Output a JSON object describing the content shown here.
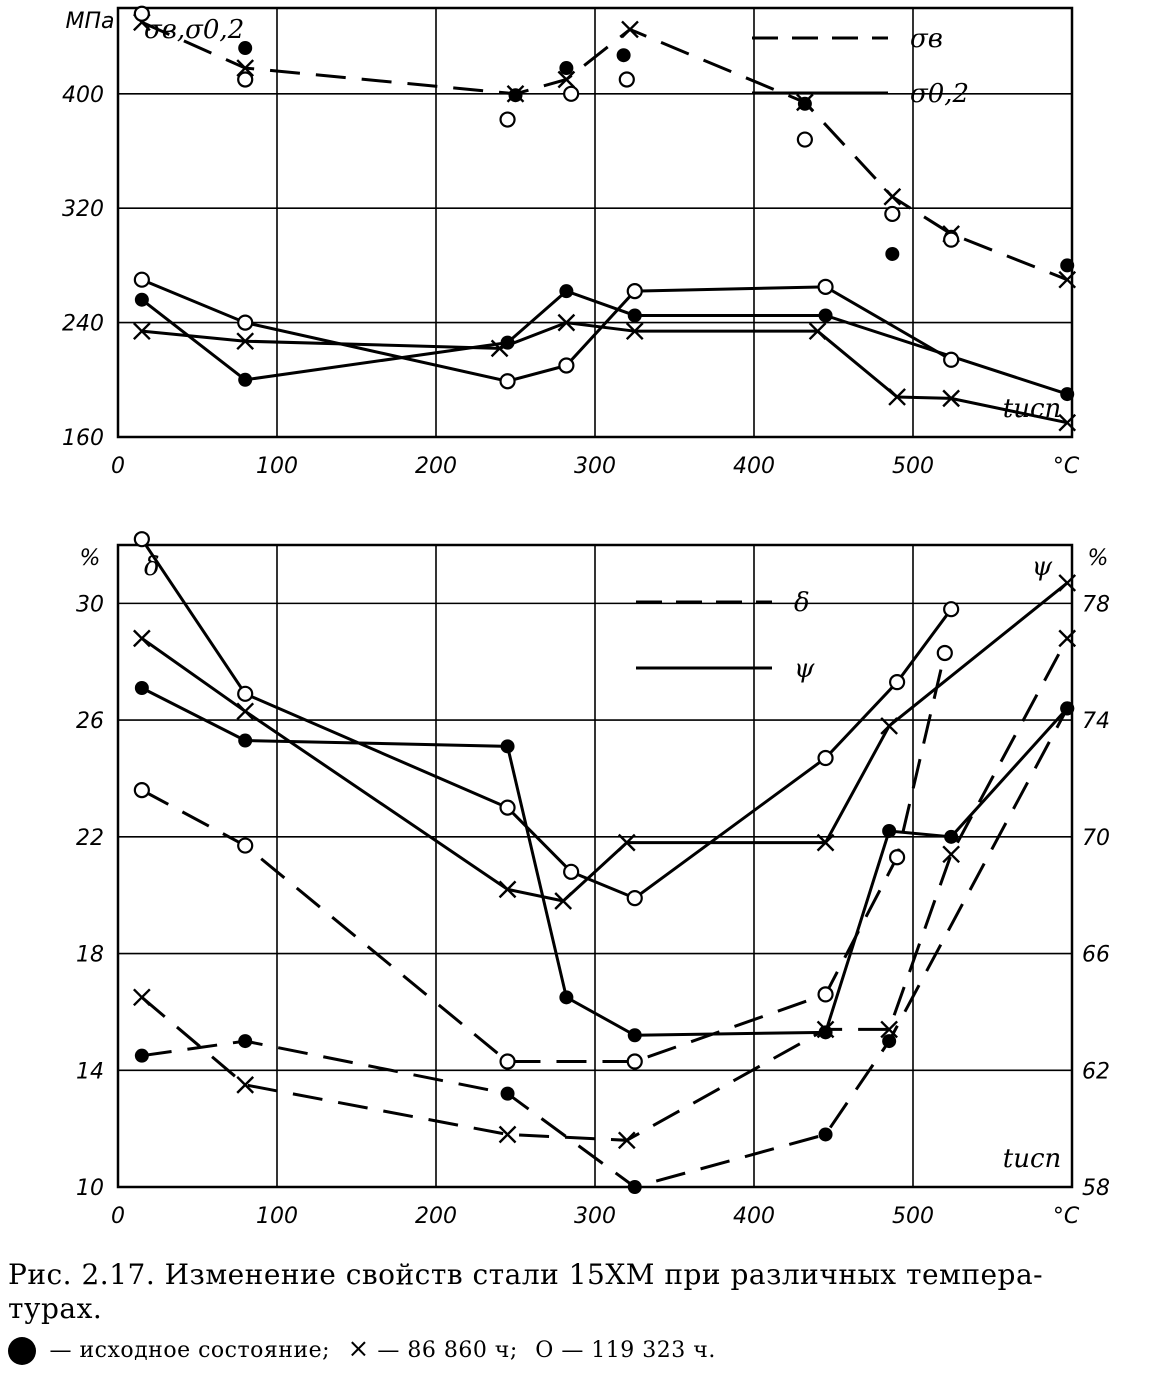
{
  "chart_data": [
    {
      "type": "line",
      "ylabel": "МПа",
      "xunit": "°C",
      "corner_label": "σв,σ0,2",
      "xlabel": "tисп",
      "xlim": [
        0,
        600
      ],
      "ylim": [
        160,
        460
      ],
      "xticks": [
        "0",
        "100",
        "200",
        "300",
        "400",
        "500"
      ],
      "yticks": [
        "160",
        "240",
        "320",
        "400"
      ],
      "legend": [
        {
          "name": "σв",
          "style": "dashed"
        },
        {
          "name": "σ0,2",
          "style": "solid"
        }
      ],
      "series": [
        {
          "name": "σв",
          "marker": "x",
          "style": "dashed",
          "x": [
            15,
            80,
            250,
            282,
            322,
            432,
            487,
            524,
            597
          ],
          "y": [
            450,
            418,
            400,
            410,
            445,
            394,
            328,
            302,
            270
          ]
        },
        {
          "name": "σв",
          "marker": "filled",
          "style": "points",
          "x": [
            80,
            250,
            282,
            318,
            432,
            487,
            524,
            597
          ],
          "y": [
            432,
            399,
            418,
            427,
            393,
            288,
            300,
            280
          ]
        },
        {
          "name": "σв",
          "marker": "open",
          "style": "points",
          "x": [
            15,
            80,
            245,
            285,
            320,
            432,
            487,
            524
          ],
          "y": [
            456,
            410,
            382,
            400,
            410,
            368,
            316,
            298
          ]
        },
        {
          "name": "σ0,2",
          "marker": "x",
          "style": "solid",
          "x": [
            15,
            80,
            240,
            282,
            325,
            440,
            490,
            524,
            597
          ],
          "y": [
            234,
            227,
            222,
            240,
            234,
            234,
            188,
            187,
            170
          ]
        },
        {
          "name": "σ0,2",
          "marker": "filled",
          "style": "solid",
          "x": [
            15,
            80,
            245,
            282,
            325,
            445,
            597
          ],
          "y": [
            256,
            200,
            226,
            262,
            245,
            245,
            190
          ]
        },
        {
          "name": "σ0,2",
          "marker": "open",
          "style": "solid",
          "x": [
            15,
            80,
            245,
            282,
            325,
            445,
            524
          ],
          "y": [
            270,
            240,
            199,
            210,
            262,
            265,
            214
          ]
        }
      ]
    },
    {
      "type": "line",
      "ylabel": "%",
      "y2label": "%",
      "xunit": "°C",
      "corner_label": "δ",
      "y2_corner_label": "ψ",
      "xlabel": "tисп",
      "xlim": [
        0,
        600
      ],
      "ylim": [
        10,
        32
      ],
      "y2lim": [
        58,
        80
      ],
      "xticks": [
        "0",
        "100",
        "200",
        "300",
        "400",
        "500"
      ],
      "yticks": [
        "10",
        "14",
        "18",
        "22",
        "26",
        "30"
      ],
      "y2ticks": [
        "58",
        "62",
        "66",
        "70",
        "74",
        "78"
      ],
      "legend": [
        {
          "name": "δ",
          "style": "dashed"
        },
        {
          "name": "ψ",
          "style": "solid"
        }
      ],
      "series": [
        {
          "name": "δ",
          "axis": "left",
          "marker": "x",
          "style": "dashed",
          "x": [
            15,
            80,
            245,
            320,
            445,
            485,
            524,
            597
          ],
          "y": [
            16.5,
            13.5,
            11.8,
            11.6,
            15.4,
            15.4,
            21.4,
            28.8
          ]
        },
        {
          "name": "δ",
          "axis": "left",
          "marker": "filled",
          "style": "dashed",
          "x": [
            15,
            80,
            245,
            325,
            445,
            485,
            597
          ],
          "y": [
            14.5,
            15,
            13.2,
            10,
            11.8,
            15,
            26.4
          ]
        },
        {
          "name": "δ",
          "axis": "left",
          "marker": "open",
          "style": "dashed",
          "x": [
            15,
            80,
            245,
            325,
            445,
            490,
            520
          ],
          "y": [
            23.6,
            21.7,
            14.3,
            14.3,
            16.6,
            21.3,
            28.3
          ]
        },
        {
          "name": "ψ",
          "axis": "right",
          "marker": "x",
          "style": "solid",
          "x": [
            15,
            80,
            245,
            280,
            320,
            445,
            485,
            597
          ],
          "y": [
            76.8,
            74.3,
            68.2,
            67.8,
            69.8,
            69.8,
            73.8,
            78.7
          ]
        },
        {
          "name": "ψ",
          "axis": "right",
          "marker": "filled",
          "style": "solid",
          "x": [
            15,
            80,
            245,
            282,
            325,
            445,
            485,
            524,
            597
          ],
          "y": [
            75.1,
            73.3,
            73.1,
            64.5,
            63.2,
            63.3,
            70.2,
            70,
            74.4
          ]
        },
        {
          "name": "ψ",
          "axis": "right",
          "marker": "open",
          "style": "solid",
          "x": [
            15,
            80,
            245,
            285,
            325,
            445,
            490,
            524
          ],
          "y": [
            80.2,
            74.9,
            71,
            68.8,
            67.9,
            72.7,
            75.3,
            77.8
          ]
        }
      ]
    }
  ],
  "caption": {
    "line1": "Рис. 2.17. Изменение свойств стали 15ХМ при различных темпера-",
    "line2": "турах.",
    "legend_initial": "— исходное состояние;",
    "legend_x_symbol": "×",
    "legend_x_text": "— 86 860 ч;",
    "legend_o_symbol": "О",
    "legend_o_text": "— 119 323 ч."
  }
}
